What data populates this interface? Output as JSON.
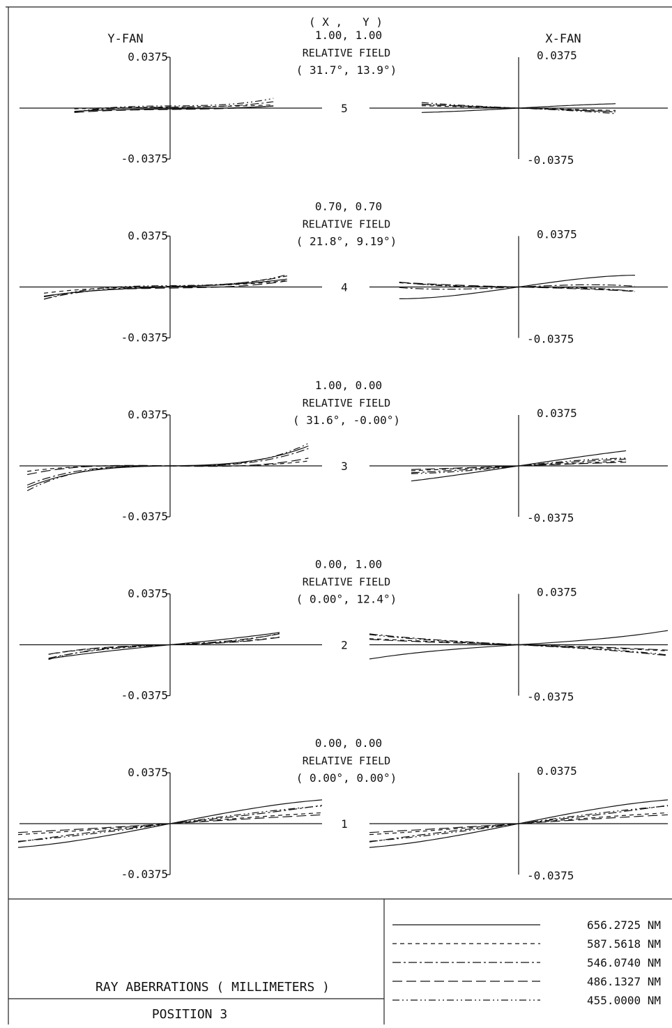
{
  "header": {
    "y_fan_label": "Y-FAN",
    "x_fan_label": "X-FAN",
    "xy_label": "( X ,   Y )"
  },
  "chart_data": {
    "type": "line",
    "title": "RAY ABERRATIONS ( MILLIMETERS )",
    "position_label": "POSITION 3",
    "relative_field_label": "RELATIVE FIELD",
    "axis_max_label": "0.0375",
    "axis_min_label": "-0.0375",
    "ylim": [
      -0.0375,
      0.0375
    ],
    "xlim": [
      -1,
      1
    ],
    "legend": [
      {
        "name": "656.2725 NM",
        "dash": "solid"
      },
      {
        "name": "587.5618 NM",
        "dash": "short-dash"
      },
      {
        "name": "546.0740 NM",
        "dash": "dash-dot"
      },
      {
        "name": "486.1327 NM",
        "dash": "long-dash"
      },
      {
        "name": "455.0000 NM",
        "dash": "dash-dot-dot"
      }
    ],
    "fields": [
      {
        "index": "5",
        "rel_xy": "1.00, 1.00",
        "angle": "( 31.7°,  13.9°)",
        "y_fan_extent": [
          -0.63,
          0.68
        ],
        "x_fan_extent": [
          -0.65,
          0.65
        ],
        "y_fan": [
          {
            "a1": 0.0012,
            "a3": 0.004,
            "c": -0.0006
          },
          {
            "a1": 0.001,
            "a3": 0.003,
            "c": 0.0008
          },
          {
            "a1": 0.001,
            "a3": 0.011,
            "c": 0.0006
          },
          {
            "a1": 0.0012,
            "a3": 0.006,
            "c": -0.001
          },
          {
            "a1": 0.0008,
            "a3": 0.016,
            "c": 0.0016
          }
        ],
        "x_fan": [
          {
            "a1": 0.006,
            "a3": -0.0025,
            "c": 0.0
          },
          {
            "a1": -0.0025,
            "a3": -0.0005,
            "c": 0.0
          },
          {
            "a1": -0.0035,
            "a3": -0.0015,
            "c": 0.0
          },
          {
            "a1": -0.004,
            "a3": -0.001,
            "c": 0.0
          },
          {
            "a1": -0.005,
            "a3": -0.003,
            "c": 0.0
          }
        ]
      },
      {
        "index": "4",
        "rel_xy": "0.70, 0.70",
        "angle": "( 21.8°,  9.19°)",
        "y_fan_extent": [
          -0.83,
          0.77
        ],
        "x_fan_extent": [
          -0.8,
          0.78
        ],
        "y_fan": [
          {
            "a1": 0.004,
            "a3": 0.006,
            "c": 0.0
          },
          {
            "a1": 0.002,
            "a3": 0.006,
            "c": 0.0005
          },
          {
            "a1": 0.003,
            "a3": 0.012,
            "c": 0.0004
          },
          {
            "a1": 0.0015,
            "a3": 0.009,
            "c": -0.0008
          },
          {
            "a1": 0.001,
            "a3": 0.016,
            "c": 0.001
          }
        ],
        "x_fan": [
          {
            "a1": 0.016,
            "a3": -0.008,
            "c": 0.0
          },
          {
            "a1": -0.002,
            "a3": -0.003,
            "c": 0.0
          },
          {
            "a1": 0.005,
            "a3": -0.007,
            "c": 0.0
          },
          {
            "a1": -0.003,
            "a3": -0.002,
            "c": 0.0
          },
          {
            "a1": 0.0,
            "a3": -0.007,
            "c": 0.0
          }
        ]
      },
      {
        "index": "3",
        "rel_xy": "1.00, 0.00",
        "angle": "( 31.6°, -0.00°)",
        "y_fan_extent": [
          -0.94,
          0.91
        ],
        "x_fan_extent": [
          -0.72,
          0.72
        ],
        "y_fan": [
          {
            "a1": 0.002,
            "a3": 0.017,
            "c": 0.0
          },
          {
            "a1": -0.001,
            "a3": 0.006,
            "c": 0.0
          },
          {
            "a1": 0.0,
            "a3": 0.017,
            "c": 0.0
          },
          {
            "a1": -0.002,
            "a3": 0.01,
            "c": 0.0
          },
          {
            "a1": 0.0,
            "a3": 0.022,
            "c": 0.0
          }
        ],
        "x_fan": [
          {
            "a1": 0.0165,
            "a3": -0.002,
            "c": 0.0
          },
          {
            "a1": 0.005,
            "a3": 0.0,
            "c": 0.0
          },
          {
            "a1": 0.008,
            "a3": -0.002,
            "c": 0.0
          },
          {
            "a1": 0.004,
            "a3": -0.0005,
            "c": 0.0
          },
          {
            "a1": 0.011,
            "a3": -0.006,
            "c": 0.0
          }
        ]
      },
      {
        "index": "2",
        "rel_xy": "0.00, 1.00",
        "angle": "( 0.00°,  12.4°)",
        "y_fan_extent": [
          -0.8,
          0.72
        ],
        "x_fan_extent": [
          -1.0,
          1.0
        ],
        "y_fan": [
          {
            "a1": 0.011,
            "a3": 0.003,
            "c": 0.0
          },
          {
            "a1": 0.004,
            "a3": 0.0075,
            "c": 0.0
          },
          {
            "a1": 0.006,
            "a3": 0.01,
            "c": 0.0
          },
          {
            "a1": 0.003,
            "a3": 0.009,
            "c": 0.0
          },
          {
            "a1": 0.004,
            "a3": 0.015,
            "c": 0.0
          }
        ],
        "x_fan": [
          {
            "a1": 0.007,
            "a3": 0.0035,
            "c": 0.0
          },
          {
            "a1": -0.004,
            "a3": -0.0005,
            "c": 0.0
          },
          {
            "a1": -0.006,
            "a3": -0.002,
            "c": 0.0
          },
          {
            "a1": -0.003,
            "a3": -0.001,
            "c": 0.0
          },
          {
            "a1": -0.005,
            "a3": -0.0025,
            "c": 0.0
          }
        ]
      },
      {
        "index": "1",
        "rel_xy": "0.00, 0.00",
        "angle": "( 0.00°,  0.00°)",
        "y_fan_extent": [
          -1.0,
          1.0
        ],
        "x_fan_extent": [
          -1.0,
          1.0
        ],
        "y_fan": [
          {
            "a1": 0.022,
            "a3": -0.0045,
            "c": 0.0
          },
          {
            "a1": 0.009,
            "a3": -0.001,
            "c": 0.0
          },
          {
            "a1": 0.012,
            "a3": 0.0015,
            "c": 0.0
          },
          {
            "a1": 0.007,
            "a3": -0.0005,
            "c": 0.0
          },
          {
            "a1": 0.015,
            "a3": -0.002,
            "c": 0.0
          }
        ],
        "x_fan": [
          {
            "a1": 0.022,
            "a3": -0.0045,
            "c": 0.0
          },
          {
            "a1": 0.009,
            "a3": -0.001,
            "c": 0.0
          },
          {
            "a1": 0.012,
            "a3": 0.0015,
            "c": 0.0
          },
          {
            "a1": 0.007,
            "a3": -0.0005,
            "c": 0.0
          },
          {
            "a1": 0.015,
            "a3": -0.002,
            "c": 0.0
          }
        ]
      }
    ]
  }
}
